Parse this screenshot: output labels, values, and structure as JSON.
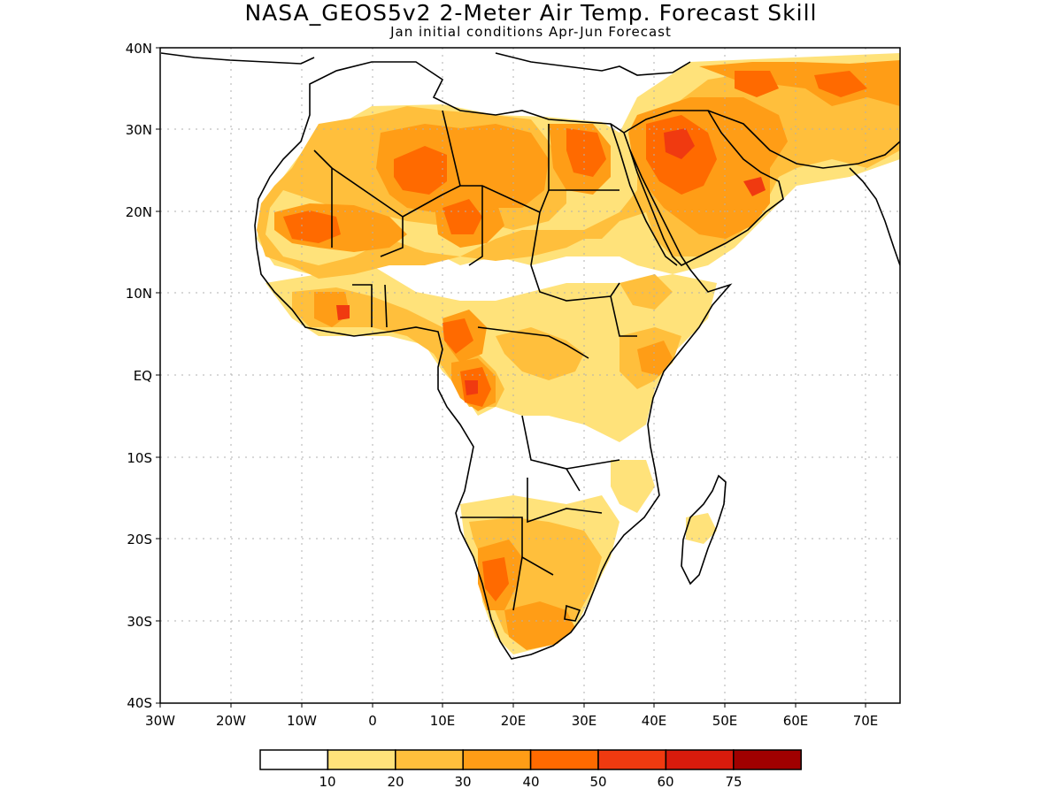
{
  "header": {
    "title": "NASA_GEOS5v2 2-Meter Air Temp. Forecast Skill",
    "subtitle": "Jan initial conditions  Apr-Jun Forecast"
  },
  "axes": {
    "lat_labels": [
      "40N",
      "30N",
      "20N",
      "10N",
      "EQ",
      "10S",
      "20S",
      "30S",
      "40S"
    ],
    "lon_labels": [
      "30W",
      "20W",
      "10W",
      "0",
      "10E",
      "20E",
      "30E",
      "40E",
      "50E",
      "60E",
      "70E"
    ]
  },
  "colorbar": {
    "ticks": [
      "10",
      "20",
      "30",
      "40",
      "50",
      "60",
      "75"
    ],
    "colors": [
      "#ffffff",
      "#ffe27a",
      "#ffbf3c",
      "#ff9d16",
      "#ff6a00",
      "#f03a10",
      "#d81b0c",
      "#a00000"
    ]
  },
  "palette": {
    "skill_10_20": "#ffe27a",
    "skill_20_30": "#ffbf3c",
    "skill_30_40": "#ff9d16",
    "skill_40_50": "#ff6a00",
    "skill_50_60": "#f03a10",
    "grid": "#b0b0b0",
    "coast": "#000000"
  }
}
